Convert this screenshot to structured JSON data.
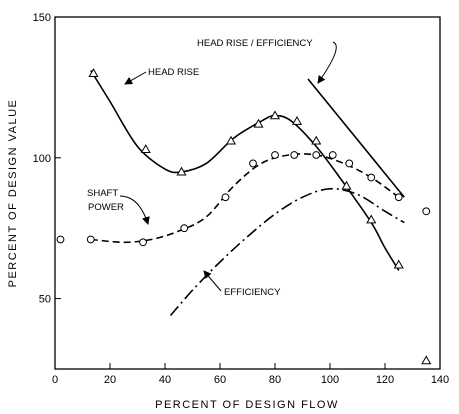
{
  "chart_data": {
    "type": "line",
    "title": "",
    "xlabel": "PERCENT  OF  DESIGN  FLOW",
    "ylabel": "PERCENT  OF  DESIGN  VALUE",
    "xlim": [
      0,
      140
    ],
    "ylim": [
      25,
      150
    ],
    "x_ticks": [
      "0",
      "20",
      "40",
      "60",
      "80",
      "100",
      "120",
      "140"
    ],
    "y_ticks": [
      "50",
      "100",
      "150"
    ],
    "grid": false,
    "legend": "none",
    "series": [
      {
        "name": "HEAD RISE",
        "line_style": "solid",
        "marker": "triangle",
        "curve": [
          [
            13,
            131
          ],
          [
            20,
            120
          ],
          [
            30,
            104
          ],
          [
            40,
            96
          ],
          [
            46,
            95
          ],
          [
            55,
            98
          ],
          [
            65,
            107
          ],
          [
            75,
            113
          ],
          [
            80,
            115
          ],
          [
            86,
            113
          ],
          [
            95,
            104
          ],
          [
            105,
            91
          ],
          [
            115,
            77
          ],
          [
            120,
            68
          ],
          [
            125,
            60
          ]
        ],
        "points": [
          [
            14,
            130
          ],
          [
            33,
            103
          ],
          [
            46,
            95
          ],
          [
            64,
            106
          ],
          [
            74,
            112
          ],
          [
            80,
            115
          ],
          [
            88,
            113
          ],
          [
            95,
            106
          ],
          [
            106,
            90
          ],
          [
            115,
            78
          ],
          [
            125,
            62
          ],
          [
            135,
            28
          ]
        ]
      },
      {
        "name": "SHAFT POWER",
        "line_style": "dashed",
        "marker": "circle",
        "curve": [
          [
            13,
            71
          ],
          [
            25,
            70
          ],
          [
            35,
            71
          ],
          [
            45,
            74
          ],
          [
            55,
            79
          ],
          [
            65,
            90
          ],
          [
            75,
            98
          ],
          [
            85,
            101
          ],
          [
            95,
            101
          ],
          [
            105,
            98
          ],
          [
            115,
            93
          ],
          [
            125,
            86
          ]
        ],
        "points": [
          [
            2,
            71
          ],
          [
            13,
            71
          ],
          [
            32,
            70
          ],
          [
            47,
            75
          ],
          [
            62,
            86
          ],
          [
            72,
            98
          ],
          [
            80,
            101
          ],
          [
            87,
            101
          ],
          [
            95,
            101
          ],
          [
            101,
            101
          ],
          [
            107,
            98
          ],
          [
            115,
            93
          ],
          [
            125,
            86
          ],
          [
            135,
            81
          ]
        ]
      },
      {
        "name": "EFFICIENCY",
        "line_style": "dash-dot",
        "marker": "none",
        "curve": [
          [
            42,
            44
          ],
          [
            50,
            53
          ],
          [
            60,
            63
          ],
          [
            70,
            72
          ],
          [
            80,
            80
          ],
          [
            90,
            86
          ],
          [
            100,
            89
          ],
          [
            110,
            87
          ],
          [
            120,
            81
          ],
          [
            127,
            77
          ]
        ],
        "points": []
      },
      {
        "name": "HEAD RISE / EFFICIENCY",
        "line_style": "solid",
        "marker": "none",
        "curve": [
          [
            92,
            128
          ],
          [
            127,
            86
          ]
        ],
        "points": []
      }
    ]
  },
  "labels": {
    "head_rise": "HEAD RISE",
    "shaft": "SHAFT",
    "power": "POWER",
    "efficiency": "EFFICIENCY",
    "head_rise_efficiency": "HEAD RISE / EFFICIENCY"
  }
}
